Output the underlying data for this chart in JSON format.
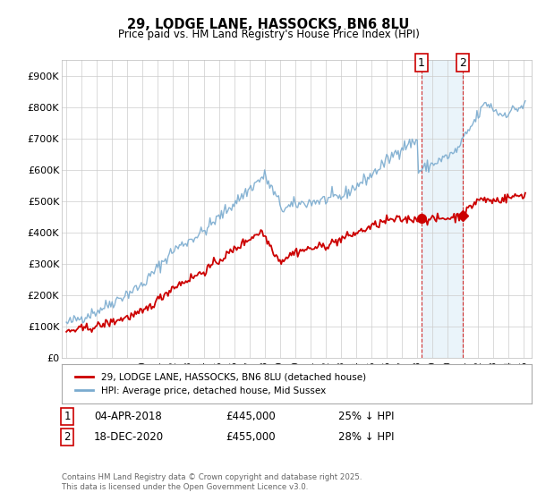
{
  "title": "29, LODGE LANE, HASSOCKS, BN6 8LU",
  "subtitle": "Price paid vs. HM Land Registry's House Price Index (HPI)",
  "legend_line1": "29, LODGE LANE, HASSOCKS, BN6 8LU (detached house)",
  "legend_line2": "HPI: Average price, detached house, Mid Sussex",
  "sale1_date": "04-APR-2018",
  "sale1_price": "£445,000",
  "sale1_hpi": "25% ↓ HPI",
  "sale1_year": 2018.27,
  "sale1_value": 445000,
  "sale2_date": "18-DEC-2020",
  "sale2_price": "£455,000",
  "sale2_hpi": "28% ↓ HPI",
  "sale2_year": 2020.96,
  "sale2_value": 455000,
  "red_color": "#cc0000",
  "blue_color": "#7aabcf",
  "blue_fill": "#ddeef8",
  "shade_color": "#ddeef8",
  "background_color": "#ffffff",
  "grid_color": "#cccccc",
  "footer": "Contains HM Land Registry data © Crown copyright and database right 2025.\nThis data is licensed under the Open Government Licence v3.0.",
  "ylim": [
    0,
    950000
  ],
  "yticks": [
    0,
    100000,
    200000,
    300000,
    400000,
    500000,
    600000,
    700000,
    800000,
    900000
  ],
  "ytick_labels": [
    "£0",
    "£100K",
    "£200K",
    "£300K",
    "£400K",
    "£500K",
    "£600K",
    "£700K",
    "£800K",
    "£900K"
  ],
  "xlim_start": 1994.7,
  "xlim_end": 2025.5
}
